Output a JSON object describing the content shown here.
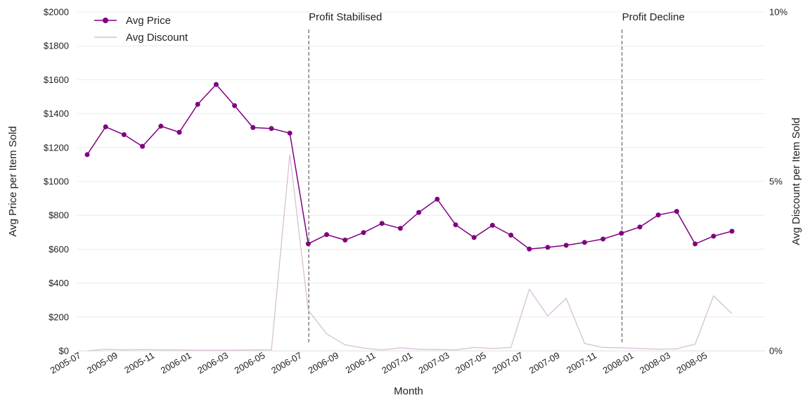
{
  "chart_data": {
    "type": "line",
    "xlabel": "Month",
    "ylabel_left": "Avg Price per Item Sold",
    "ylabel_right": "Avg Discount per Item Sold",
    "ylim_left": [
      0,
      2000
    ],
    "ylim_right": [
      0,
      10
    ],
    "y_ticks_left": [
      "$0",
      "$200",
      "$400",
      "$600",
      "$800",
      "$1000",
      "$1200",
      "$1400",
      "$1600",
      "$1800",
      "$2000"
    ],
    "y_ticks_right": [
      "0%",
      "5%",
      "10%"
    ],
    "x_ticks": [
      "2005-07",
      "2005-09",
      "2005-11",
      "2006-01",
      "2006-03",
      "2006-05",
      "2006-07",
      "2006-09",
      "2006-11",
      "2007-01",
      "2007-03",
      "2007-05",
      "2007-07",
      "2007-09",
      "2007-11",
      "2008-01",
      "2008-03",
      "2008-05"
    ],
    "grid": "horizontal",
    "legend": "top-left",
    "x": [
      "2005-07",
      "2005-08",
      "2005-09",
      "2005-10",
      "2005-11",
      "2005-12",
      "2006-01",
      "2006-02",
      "2006-03",
      "2006-04",
      "2006-05",
      "2006-06",
      "2006-07",
      "2006-08",
      "2006-09",
      "2006-10",
      "2006-11",
      "2006-12",
      "2007-01",
      "2007-02",
      "2007-03",
      "2007-04",
      "2007-05",
      "2007-06",
      "2007-07",
      "2007-08",
      "2007-09",
      "2007-10",
      "2007-11",
      "2007-12",
      "2008-01",
      "2008-02",
      "2008-03",
      "2008-04",
      "2008-05",
      "2008-06"
    ],
    "series": [
      {
        "name": "Avg Price",
        "axis": "left",
        "color": "#800080",
        "values": [
          1158,
          1322,
          1276,
          1207,
          1326,
          1290,
          1455,
          1572,
          1447,
          1318,
          1312,
          1285,
          632,
          686,
          654,
          698,
          752,
          723,
          817,
          895,
          744,
          669,
          741,
          683,
          601,
          611,
          623,
          640,
          660,
          694,
          731,
          802,
          823,
          631,
          677,
          706
        ]
      },
      {
        "name": "Avg Discount",
        "axis": "right",
        "color": "#d8bfd8",
        "values": [
          0.0,
          0.05,
          0.03,
          0.04,
          0.03,
          0.03,
          0.02,
          0.02,
          0.02,
          0.03,
          0.03,
          5.8,
          1.2,
          0.5,
          0.18,
          0.08,
          0.03,
          0.09,
          0.05,
          0.04,
          0.03,
          0.1,
          0.07,
          0.1,
          1.82,
          1.03,
          1.55,
          0.22,
          0.1,
          0.09,
          0.07,
          0.05,
          0.06,
          0.2,
          1.62,
          1.1
        ]
      }
    ],
    "annotations": [
      {
        "label": "Profit Stabilised",
        "x": "2006-07"
      },
      {
        "label": "Profit Decline",
        "x": "2007-12"
      }
    ]
  }
}
